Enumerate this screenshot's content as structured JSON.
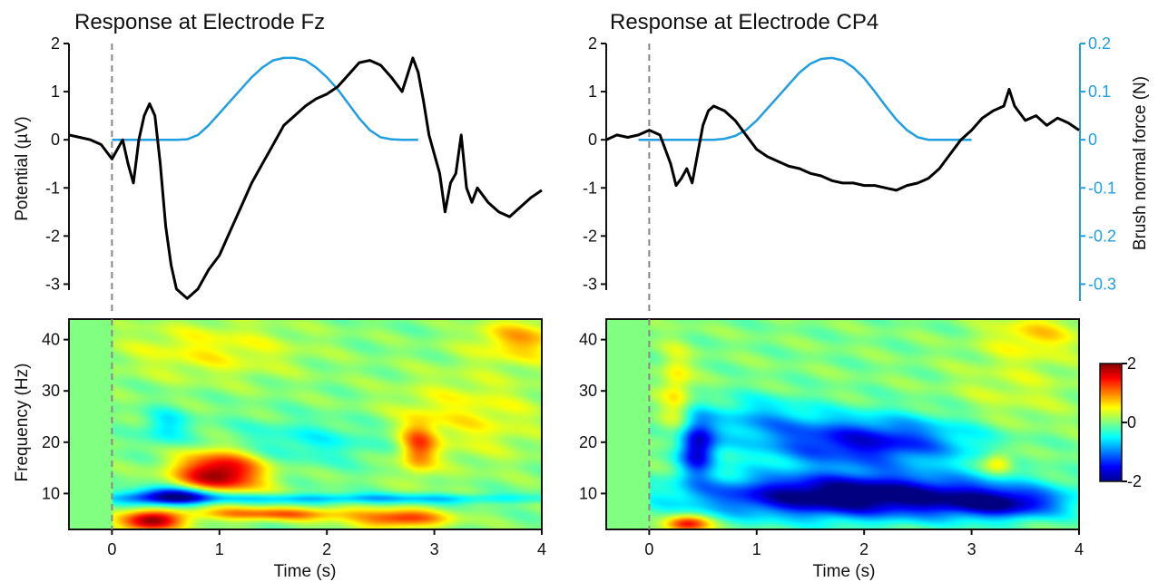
{
  "chart_data": [
    {
      "type": "line",
      "title": "Response at Electrode Fz",
      "ylabel": "Potential (µV)",
      "xlabel": "",
      "xlim": [
        -0.4,
        4
      ],
      "ylim": [
        -3.35,
        2
      ],
      "yticks": [
        "2",
        "1",
        "0",
        "-1",
        "-2",
        "-3"
      ],
      "stimulus_onset": 0,
      "series": [
        {
          "role": "potential",
          "color": "#000000",
          "x": [
            -0.4,
            -0.3,
            -0.2,
            -0.1,
            0,
            0.05,
            0.1,
            0.15,
            0.2,
            0.25,
            0.3,
            0.35,
            0.4,
            0.45,
            0.5,
            0.55,
            0.6,
            0.65,
            0.7,
            0.75,
            0.8,
            0.85,
            0.9,
            1.0,
            1.1,
            1.2,
            1.3,
            1.4,
            1.5,
            1.6,
            1.7,
            1.8,
            1.9,
            2.0,
            2.1,
            2.2,
            2.3,
            2.4,
            2.5,
            2.6,
            2.7,
            2.8,
            2.85,
            2.9,
            2.95,
            3.0,
            3.05,
            3.1,
            3.15,
            3.2,
            3.25,
            3.3,
            3.35,
            3.4,
            3.5,
            3.6,
            3.7,
            3.8,
            3.9,
            4.0
          ],
          "y": [
            0.1,
            0.05,
            0.0,
            -0.1,
            -0.4,
            -0.2,
            0.0,
            -0.5,
            -0.9,
            0.0,
            0.5,
            0.75,
            0.5,
            -0.5,
            -1.8,
            -2.6,
            -3.1,
            -3.2,
            -3.3,
            -3.2,
            -3.1,
            -2.9,
            -2.7,
            -2.4,
            -1.9,
            -1.4,
            -0.9,
            -0.5,
            -0.1,
            0.3,
            0.5,
            0.7,
            0.85,
            0.95,
            1.1,
            1.35,
            1.6,
            1.65,
            1.55,
            1.3,
            1.0,
            1.7,
            1.4,
            0.8,
            0.1,
            -0.3,
            -0.7,
            -1.5,
            -0.9,
            -0.7,
            0.1,
            -1.0,
            -1.3,
            -1.0,
            -1.3,
            -1.5,
            -1.6,
            -1.4,
            -1.2,
            -1.05
          ]
        },
        {
          "role": "brush normal force",
          "color": "#1f9ee0",
          "x": [
            0.0,
            0.1,
            0.2,
            0.3,
            0.4,
            0.5,
            0.6,
            0.7,
            0.8,
            0.9,
            1.0,
            1.1,
            1.2,
            1.3,
            1.4,
            1.5,
            1.6,
            1.7,
            1.8,
            1.9,
            2.0,
            2.1,
            2.2,
            2.3,
            2.4,
            2.5,
            2.6,
            2.7,
            2.8,
            2.85
          ],
          "y": [
            0,
            0,
            0,
            0,
            0,
            0,
            0,
            0.001,
            0.01,
            0.03,
            0.055,
            0.08,
            0.105,
            0.13,
            0.15,
            0.165,
            0.17,
            0.17,
            0.165,
            0.15,
            0.13,
            0.105,
            0.075,
            0.045,
            0.02,
            0.005,
            0.001,
            0,
            0,
            0
          ]
        }
      ]
    },
    {
      "type": "line",
      "title": "Response at Electrode CP4",
      "ylabel": "",
      "y2label": "Brush normal force (N)",
      "xlabel": "",
      "xlim": [
        -0.4,
        4
      ],
      "ylim": [
        -3.35,
        2
      ],
      "yticks": [
        "2",
        "1",
        "0",
        "-1",
        "-2",
        "-3"
      ],
      "y2lim": [
        -0.335,
        0.2
      ],
      "y2ticks": [
        "0.2",
        "0.1",
        "0",
        "-0.1",
        "-0.2",
        "-0.3"
      ],
      "stimulus_onset": 0,
      "series": [
        {
          "role": "potential",
          "color": "#000000",
          "x": [
            -0.4,
            -0.3,
            -0.2,
            -0.1,
            0,
            0.1,
            0.2,
            0.25,
            0.3,
            0.35,
            0.4,
            0.45,
            0.5,
            0.55,
            0.6,
            0.7,
            0.8,
            0.9,
            1.0,
            1.1,
            1.2,
            1.3,
            1.4,
            1.5,
            1.6,
            1.7,
            1.8,
            1.9,
            2.0,
            2.1,
            2.2,
            2.3,
            2.4,
            2.5,
            2.6,
            2.7,
            2.8,
            2.9,
            3.0,
            3.1,
            3.2,
            3.3,
            3.35,
            3.4,
            3.5,
            3.6,
            3.7,
            3.8,
            3.9,
            4.0
          ],
          "y": [
            0.0,
            0.1,
            0.05,
            0.1,
            0.2,
            0.1,
            -0.5,
            -0.95,
            -0.8,
            -0.6,
            -0.9,
            -0.3,
            0.3,
            0.6,
            0.7,
            0.6,
            0.4,
            0.1,
            -0.2,
            -0.35,
            -0.45,
            -0.55,
            -0.6,
            -0.7,
            -0.75,
            -0.85,
            -0.9,
            -0.9,
            -0.95,
            -0.95,
            -1.0,
            -1.05,
            -0.95,
            -0.9,
            -0.8,
            -0.6,
            -0.3,
            0.0,
            0.2,
            0.45,
            0.6,
            0.7,
            1.05,
            0.7,
            0.4,
            0.5,
            0.3,
            0.45,
            0.35,
            0.2
          ]
        },
        {
          "role": "brush normal force",
          "color": "#1f9ee0",
          "x": [
            -0.1,
            0,
            0.1,
            0.2,
            0.3,
            0.4,
            0.5,
            0.6,
            0.7,
            0.8,
            0.9,
            1.0,
            1.1,
            1.2,
            1.3,
            1.4,
            1.5,
            1.6,
            1.7,
            1.8,
            1.9,
            2.0,
            2.1,
            2.2,
            2.3,
            2.4,
            2.5,
            2.6,
            2.7,
            2.8,
            2.9,
            3.0
          ],
          "y": [
            0,
            0,
            0,
            0,
            0,
            0,
            0,
            0,
            0.002,
            0.008,
            0.02,
            0.04,
            0.065,
            0.09,
            0.115,
            0.14,
            0.158,
            0.168,
            0.17,
            0.165,
            0.15,
            0.128,
            0.1,
            0.07,
            0.042,
            0.02,
            0.005,
            0,
            0,
            0,
            0,
            0
          ]
        }
      ]
    },
    {
      "type": "heatmap",
      "ylabel": "Frequency (Hz)",
      "xlabel": "Time (s)",
      "xlim": [
        -0.4,
        4
      ],
      "ylim": [
        3,
        44
      ],
      "xticks": [
        "0",
        "1",
        "2",
        "3",
        "4"
      ],
      "yticks": [
        "40",
        "30",
        "20",
        "10"
      ],
      "stimulus_onset": 0,
      "blobs": [
        {
          "t": 1.0,
          "f": 14,
          "st": 0.28,
          "sf": 3.0,
          "v": 2.0
        },
        {
          "t": 0.6,
          "f": 9.5,
          "st": 0.3,
          "sf": 1.2,
          "v": -2.0
        },
        {
          "t": 0.35,
          "f": 4.5,
          "st": 0.2,
          "sf": 1.5,
          "v": 1.8
        },
        {
          "t": 1.5,
          "f": 6,
          "st": 0.6,
          "sf": 0.9,
          "v": 1.1
        },
        {
          "t": 2.7,
          "f": 5,
          "st": 0.3,
          "sf": 1.2,
          "v": 1.3
        },
        {
          "t": 2.85,
          "f": 19,
          "st": 0.12,
          "sf": 3.5,
          "v": 1.1
        },
        {
          "t": 2.2,
          "f": 9,
          "st": 1.5,
          "sf": 0.7,
          "v": -0.8
        },
        {
          "t": 1.8,
          "f": 20,
          "st": 0.6,
          "sf": 3.0,
          "v": -0.45
        },
        {
          "t": 0.5,
          "f": 23,
          "st": 0.15,
          "sf": 2.5,
          "v": -0.6
        },
        {
          "t": 3.8,
          "f": 40,
          "st": 0.3,
          "sf": 3.0,
          "v": 0.8
        },
        {
          "t": 0.9,
          "f": 38,
          "st": 0.6,
          "sf": 4.0,
          "v": 0.5
        },
        {
          "t": 3.3,
          "f": 25,
          "st": 0.5,
          "sf": 6.0,
          "v": 0.5
        }
      ]
    },
    {
      "type": "heatmap",
      "ylabel": "",
      "xlabel": "Time (s)",
      "xlim": [
        -0.4,
        4
      ],
      "ylim": [
        3,
        44
      ],
      "xticks": [
        "0",
        "1",
        "2",
        "3",
        "4"
      ],
      "yticks": [
        "40",
        "30",
        "20",
        "10"
      ],
      "stimulus_onset": 0,
      "colorbar": {
        "ticks": [
          "2",
          "0",
          "-2"
        ],
        "range": [
          -2,
          2
        ]
      },
      "blobs": [
        {
          "t": 1.9,
          "f": 9.5,
          "st": 1.0,
          "sf": 3.0,
          "v": -2.3
        },
        {
          "t": 3.3,
          "f": 8,
          "st": 0.4,
          "sf": 2.0,
          "v": -1.3
        },
        {
          "t": 0.45,
          "f": 19,
          "st": 0.12,
          "sf": 4.0,
          "v": -1.7
        },
        {
          "t": 2.0,
          "f": 20,
          "st": 0.7,
          "sf": 3.5,
          "v": -1.6
        },
        {
          "t": 1.0,
          "f": 25,
          "st": 0.35,
          "sf": 3.0,
          "v": -0.6
        },
        {
          "t": 0.35,
          "f": 4,
          "st": 0.15,
          "sf": 1.2,
          "v": 1.6
        },
        {
          "t": 0.25,
          "f": 30,
          "st": 0.1,
          "sf": 6.0,
          "v": 0.6
        },
        {
          "t": 3.25,
          "f": 16,
          "st": 0.1,
          "sf": 1.5,
          "v": 0.8
        },
        {
          "t": 3.6,
          "f": 41,
          "st": 0.3,
          "sf": 3.0,
          "v": 0.6
        },
        {
          "t": 3.4,
          "f": 30,
          "st": 0.4,
          "sf": 6.0,
          "v": 0.3
        }
      ]
    }
  ]
}
